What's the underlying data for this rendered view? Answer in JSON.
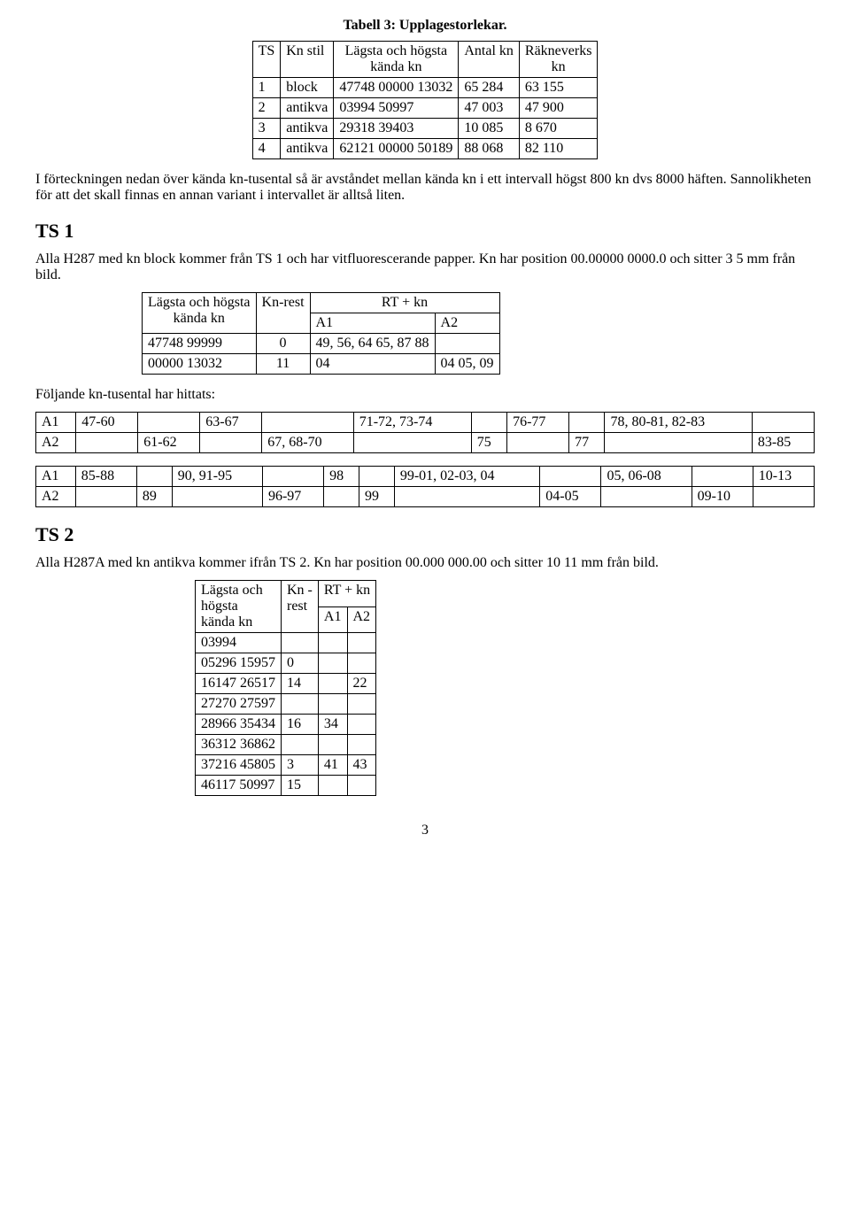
{
  "title": "Tabell 3: Upplagestorlekar.",
  "table3": {
    "headers": {
      "ts": "TS",
      "knstil": "Kn stil",
      "lagsta": "Lägsta och högsta\nkända kn",
      "antal": "Antal kn",
      "rakne": "Räkneverks\nkn"
    },
    "rows": [
      {
        "ts": "1",
        "stil": "block",
        "lagsta": "47748 00000 13032",
        "antal": "65 284",
        "rakne": "63 155"
      },
      {
        "ts": "2",
        "stil": "antikva",
        "lagsta": "03994 50997",
        "antal": "47 003",
        "rakne": "47 900"
      },
      {
        "ts": "3",
        "stil": "antikva",
        "lagsta": "29318 39403",
        "antal": "10 085",
        "rakne": "8 670"
      },
      {
        "ts": "4",
        "stil": "antikva",
        "lagsta": "62121 00000 50189",
        "antal": "88 068",
        "rakne": "82 110"
      }
    ]
  },
  "para1": "I förteckningen nedan över kända kn-tusental så är avståndet mellan kända kn i ett intervall högst 800 kn dvs 8000 häften. Sannolikheten för att det skall finnas en annan variant i intervallet är alltså liten.",
  "ts1": {
    "heading": "TS 1",
    "para": "Alla H287 med kn block kommer från TS 1 och har vitfluorescerande papper. Kn har position 00.00000 0000.0 och sitter 3 5 mm från bild.",
    "table": {
      "h_lagsta": "Lägsta och högsta\nkända kn",
      "h_knrest": "Kn-rest",
      "h_rtkn": "RT + kn",
      "h_a1": "A1",
      "h_a2": "A2",
      "rows": [
        {
          "lagsta": "47748 99999",
          "knrest": "0",
          "a1": "49, 56, 64 65, 87 88",
          "a2": ""
        },
        {
          "lagsta": "00000 13032",
          "knrest": "11",
          "a1": "04",
          "a2": "04 05, 09"
        }
      ]
    },
    "foljande": "Följande kn-tusental har hittats:",
    "grid1": {
      "r1": [
        "A1",
        "47-60",
        "",
        "63-67",
        "",
        "71-72, 73-74",
        "",
        "76-77",
        "",
        "78, 80-81, 82-83",
        ""
      ],
      "r2": [
        "A2",
        "",
        "61-62",
        "",
        "67, 68-70",
        "",
        "75",
        "",
        "77",
        "",
        "83-85"
      ]
    },
    "grid2": {
      "r1": [
        "A1",
        "85-88",
        "",
        "90, 91-95",
        "",
        "98",
        "",
        "99-01, 02-03, 04",
        "",
        "05, 06-08",
        "",
        "10-13"
      ],
      "r2": [
        "A2",
        "",
        "89",
        "",
        "96-97",
        "",
        "99",
        "",
        "04-05",
        "",
        "09-10",
        ""
      ]
    }
  },
  "ts2": {
    "heading": "TS 2",
    "para": "Alla H287A med kn antikva kommer ifrån TS 2. Kn har position 00.000 000.00 och sitter 10 11 mm från bild.",
    "table": {
      "h_lagsta": "Lägsta och\nhögsta\nkända kn",
      "h_knrest": "Kn -\nrest",
      "h_rtkn": "RT + kn",
      "h_a1": "A1",
      "h_a2": "A2",
      "rows": [
        {
          "lagsta": "03994",
          "knrest": "",
          "a1": "",
          "a2": ""
        },
        {
          "lagsta": "05296 15957",
          "knrest": "0",
          "a1": "",
          "a2": ""
        },
        {
          "lagsta": "16147 26517",
          "knrest": "14",
          "a1": "",
          "a2": "22"
        },
        {
          "lagsta": "27270 27597",
          "knrest": "",
          "a1": "",
          "a2": ""
        },
        {
          "lagsta": "28966 35434",
          "knrest": "16",
          "a1": "34",
          "a2": ""
        },
        {
          "lagsta": "36312 36862",
          "knrest": "",
          "a1": "",
          "a2": ""
        },
        {
          "lagsta": "37216 45805",
          "knrest": "3",
          "a1": "41",
          "a2": "43"
        },
        {
          "lagsta": "46117 50997",
          "knrest": "15",
          "a1": "",
          "a2": ""
        }
      ]
    }
  },
  "pagenum": "3"
}
